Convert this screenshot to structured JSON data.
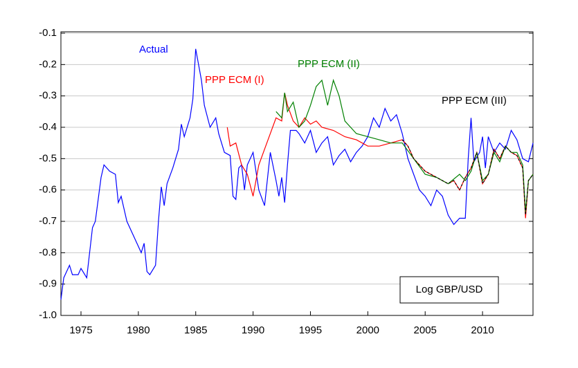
{
  "chart_data": {
    "type": "line",
    "annotation": "Log GBP/USD",
    "xlim": [
      1973.25,
      2014.4
    ],
    "xticks": [
      1975,
      1980,
      1985,
      1990,
      1995,
      2000,
      2005,
      2010
    ],
    "ylim": [
      -1.0,
      -0.1
    ],
    "yticks": [
      {
        "value": -1.0,
        "label": "-1.0"
      },
      -0.9,
      -0.8,
      -0.7,
      -0.6,
      -0.5,
      -0.4,
      -0.3,
      -0.2,
      -0.1
    ],
    "grid": true,
    "series": [
      {
        "name": "Actual",
        "color": "#0000ff",
        "x": [
          1973.25,
          1973.5,
          1974,
          1974.25,
          1974.75,
          1975,
          1975.5,
          1976,
          1976.25,
          1976.75,
          1977,
          1977.5,
          1978,
          1978.25,
          1978.5,
          1979,
          1979.5,
          1980,
          1980.25,
          1980.5,
          1980.75,
          1981,
          1981.5,
          1981.75,
          1982,
          1982.25,
          1982.5,
          1983,
          1983.5,
          1983.75,
          1984,
          1984.5,
          1984.75,
          1985,
          1985.5,
          1985.75,
          1986.25,
          1986.75,
          1987,
          1987.5,
          1988,
          1988.25,
          1988.5,
          1988.75,
          1989,
          1989.25,
          1989.5,
          1990,
          1990.5,
          1991,
          1991.5,
          1992,
          1992.25,
          1992.5,
          1992.75,
          1993,
          1993.25,
          1993.75,
          1994,
          1994.5,
          1995,
          1995.5,
          1996,
          1996.5,
          1997,
          1997.5,
          1998,
          1998.5,
          1999,
          1999.5,
          2000,
          2000.5,
          2001,
          2001.5,
          2002,
          2002.5,
          2003,
          2003.5,
          2004,
          2004.5,
          2005,
          2005.5,
          2006,
          2006.5,
          2007,
          2007.5,
          2008,
          2008.5,
          2008.75,
          2009,
          2009.25,
          2009.75,
          2010,
          2010.25,
          2010.5,
          2011,
          2011.5,
          2012,
          2012.5,
          2013,
          2013.5,
          2014,
          2014.4
        ],
        "values": [
          -0.95,
          -0.88,
          -0.84,
          -0.87,
          -0.87,
          -0.85,
          -0.88,
          -0.72,
          -0.7,
          -0.56,
          -0.52,
          -0.54,
          -0.55,
          -0.64,
          -0.62,
          -0.7,
          -0.74,
          -0.78,
          -0.8,
          -0.77,
          -0.86,
          -0.87,
          -0.84,
          -0.7,
          -0.59,
          -0.65,
          -0.58,
          -0.53,
          -0.47,
          -0.39,
          -0.43,
          -0.37,
          -0.31,
          -0.15,
          -0.25,
          -0.33,
          -0.4,
          -0.37,
          -0.42,
          -0.48,
          -0.49,
          -0.62,
          -0.63,
          -0.53,
          -0.52,
          -0.6,
          -0.52,
          -0.48,
          -0.6,
          -0.65,
          -0.48,
          -0.57,
          -0.62,
          -0.56,
          -0.64,
          -0.52,
          -0.41,
          -0.41,
          -0.42,
          -0.45,
          -0.41,
          -0.48,
          -0.45,
          -0.43,
          -0.52,
          -0.49,
          -0.47,
          -0.51,
          -0.48,
          -0.46,
          -0.43,
          -0.37,
          -0.4,
          -0.34,
          -0.38,
          -0.36,
          -0.42,
          -0.5,
          -0.55,
          -0.6,
          -0.62,
          -0.65,
          -0.6,
          -0.62,
          -0.68,
          -0.71,
          -0.69,
          -0.69,
          -0.5,
          -0.37,
          -0.51,
          -0.48,
          -0.43,
          -0.53,
          -0.43,
          -0.48,
          -0.45,
          -0.47,
          -0.41,
          -0.44,
          -0.5,
          -0.51,
          -0.45
        ]
      },
      {
        "name": "PPP ECM (I)",
        "color": "#ff0000",
        "x": [
          1987.75,
          1988,
          1988.5,
          1989,
          1989.5,
          1990,
          1990.5,
          1991,
          1991.5,
          1992,
          1992.5,
          1992.75,
          1993,
          1993.5,
          1994,
          1994.5,
          1995,
          1995.5,
          1996,
          1997,
          1998,
          1999,
          2000,
          2001,
          2002,
          2003,
          2003.5,
          2004,
          2005,
          2006,
          2007,
          2007.5,
          2008,
          2008.5,
          2009,
          2009.5,
          2010,
          2010.5,
          2011,
          2011.5,
          2012,
          2012.5,
          2013,
          2013.5,
          2013.75,
          2014,
          2014.4
        ],
        "values": [
          -0.4,
          -0.46,
          -0.45,
          -0.52,
          -0.55,
          -0.62,
          -0.52,
          -0.47,
          -0.42,
          -0.37,
          -0.38,
          -0.29,
          -0.33,
          -0.38,
          -0.4,
          -0.37,
          -0.39,
          -0.38,
          -0.4,
          -0.41,
          -0.43,
          -0.44,
          -0.46,
          -0.46,
          -0.45,
          -0.44,
          -0.46,
          -0.5,
          -0.54,
          -0.56,
          -0.58,
          -0.57,
          -0.6,
          -0.56,
          -0.53,
          -0.48,
          -0.58,
          -0.55,
          -0.47,
          -0.5,
          -0.46,
          -0.48,
          -0.49,
          -0.53,
          -0.69,
          -0.57,
          -0.55
        ]
      },
      {
        "name": "PPP ECM (II)",
        "color": "#008000",
        "x": [
          1992,
          1992.5,
          1992.75,
          1993,
          1993.5,
          1994,
          1994.5,
          1995,
          1995.5,
          1996,
          1996.5,
          1997,
          1997.5,
          1998,
          1998.5,
          1999,
          2000,
          2001,
          2002,
          2003,
          2004,
          2005,
          2006,
          2007,
          2008,
          2008.5,
          2009,
          2009.5,
          2010,
          2010.5,
          2011,
          2011.5,
          2012,
          2012.5,
          2013,
          2013.5,
          2013.75,
          2014,
          2014.4
        ],
        "values": [
          -0.35,
          -0.37,
          -0.29,
          -0.35,
          -0.32,
          -0.4,
          -0.38,
          -0.33,
          -0.27,
          -0.25,
          -0.33,
          -0.25,
          -0.3,
          -0.38,
          -0.4,
          -0.42,
          -0.43,
          -0.44,
          -0.45,
          -0.45,
          -0.5,
          -0.55,
          -0.56,
          -0.58,
          -0.55,
          -0.57,
          -0.54,
          -0.48,
          -0.57,
          -0.55,
          -0.48,
          -0.51,
          -0.46,
          -0.48,
          -0.48,
          -0.52,
          -0.67,
          -0.57,
          -0.55
        ]
      },
      {
        "name": "PPP ECM (III)",
        "color": "#000000",
        "x": [
          2003,
          2003.5,
          2004,
          2005,
          2006,
          2007,
          2007.5,
          2008,
          2008.5,
          2009,
          2009.5,
          2010,
          2010.5,
          2011,
          2011.5,
          2012,
          2012.5,
          2013,
          2013.5,
          2013.75,
          2014,
          2014.4
        ],
        "values": [
          -0.44,
          -0.46,
          -0.5,
          -0.54,
          -0.56,
          -0.58,
          -0.57,
          -0.6,
          -0.56,
          -0.53,
          -0.48,
          -0.58,
          -0.55,
          -0.47,
          -0.5,
          -0.46,
          -0.48,
          -0.49,
          -0.53,
          -0.68,
          -0.57,
          -0.55
        ]
      }
    ]
  }
}
